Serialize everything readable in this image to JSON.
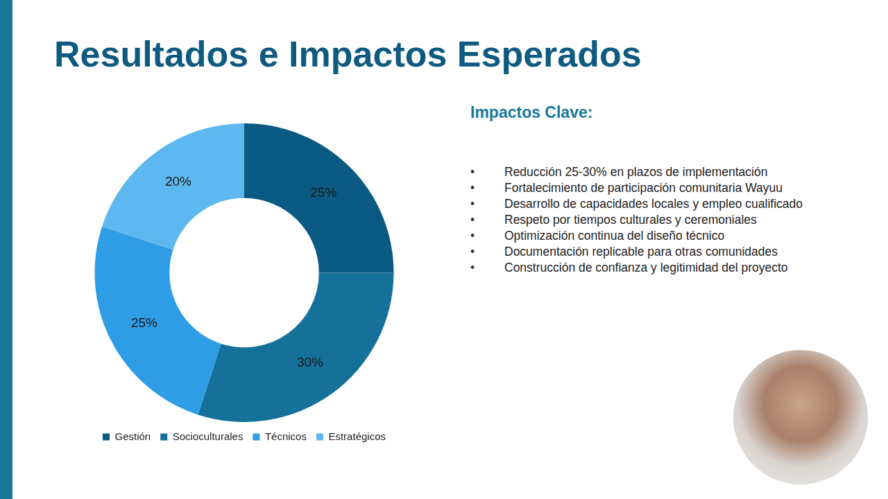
{
  "slide": {
    "title": "Resultados e Impactos Esperados",
    "subtitle": "Impactos Clave:",
    "bullets": [
      "Reducción 25-30% en plazos de implementación",
      "Fortalecimiento de participación comunitaria Wayuu",
      "Desarrollo de capacidades locales y empleo cualificado",
      "Respeto por tiempos culturales y ceremoniales",
      "Optimización continua del diseño técnico",
      "Documentación replicable para otras comunidades",
      "Construcción de confianza y legitimidad del proyecto"
    ]
  },
  "chart_data": {
    "type": "doughnut",
    "categories": [
      "Gestión",
      "Socioculturales",
      "Técnicos",
      "Estratégicos"
    ],
    "values": [
      25,
      30,
      25,
      20
    ],
    "value_labels": [
      "25%",
      "30%",
      "25%",
      "20%"
    ],
    "colors": [
      "#0b5a84",
      "#15719a",
      "#2e9de6",
      "#5cb8ee"
    ],
    "data_labels": true,
    "legend": "bottom"
  }
}
